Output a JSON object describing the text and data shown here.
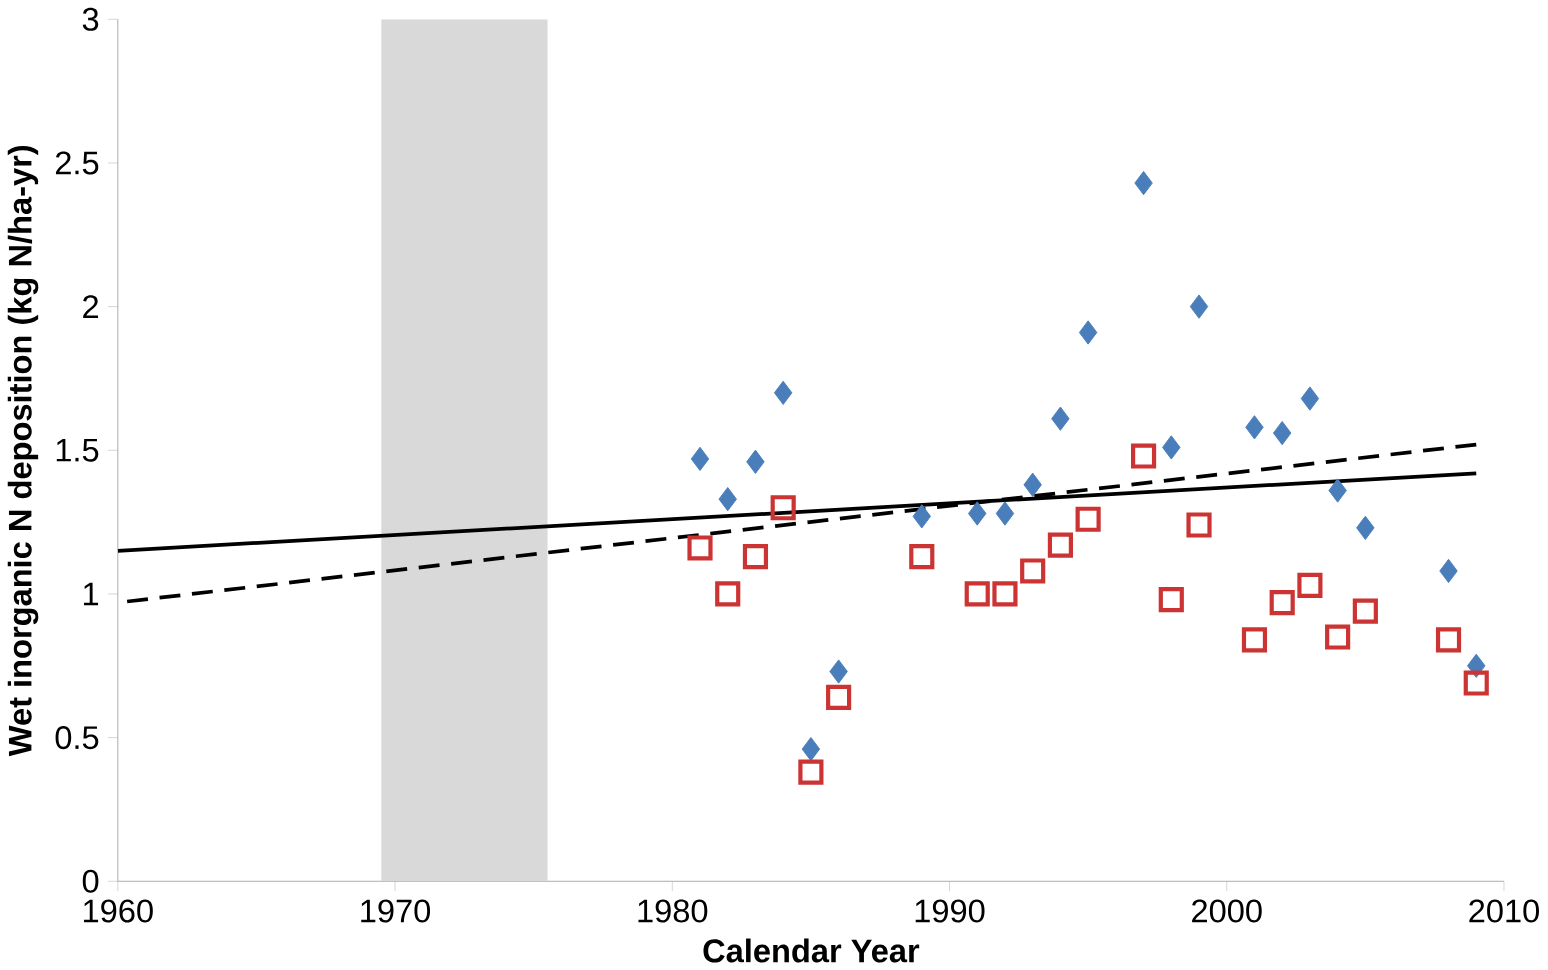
{
  "chart_data": {
    "type": "scatter",
    "xlabel": "Calendar Year",
    "ylabel": "Wet inorganic N deposition (kg N/ha-yr)",
    "xlim": [
      1960,
      2010
    ],
    "ylim": [
      0,
      3
    ],
    "xticks": [
      1960,
      1970,
      1980,
      1990,
      2000,
      2010
    ],
    "yticks": [
      0,
      0.5,
      1,
      1.5,
      2,
      2.5,
      3
    ],
    "grid": false,
    "bands": [
      {
        "axis": "x",
        "from": 1969.5,
        "to": 1975.5,
        "color": "#d9d9d9"
      }
    ],
    "series": [
      {
        "type": "scatter",
        "marker": "diamond",
        "color": "#4a7ebb",
        "x": [
          1981,
          1982,
          1983,
          1984,
          1985,
          1986,
          1989,
          1991,
          1992,
          1993,
          1994,
          1995,
          1997,
          1998,
          1999,
          2001,
          2002,
          2003,
          2004,
          2005,
          2008,
          2009
        ],
        "values": [
          1.47,
          1.33,
          1.46,
          1.7,
          0.46,
          0.73,
          1.27,
          1.28,
          1.28,
          1.38,
          1.61,
          1.91,
          2.43,
          1.51,
          2.0,
          1.58,
          1.56,
          1.68,
          1.36,
          1.23,
          1.08,
          0.75
        ]
      },
      {
        "type": "scatter",
        "marker": "square",
        "color": "#cc3333",
        "x": [
          1981,
          1982,
          1983,
          1984,
          1985,
          1986,
          1989,
          1991,
          1992,
          1993,
          1994,
          1995,
          1997,
          1998,
          1999,
          2001,
          2002,
          2003,
          2004,
          2005,
          2008,
          2009
        ],
        "values": [
          1.16,
          1.0,
          1.13,
          1.3,
          0.38,
          0.64,
          1.13,
          1.0,
          1.0,
          1.08,
          1.17,
          1.26,
          1.48,
          0.98,
          1.24,
          0.84,
          0.97,
          1.03,
          0.85,
          0.94,
          0.84,
          0.69
        ]
      },
      {
        "type": "line",
        "marker": "none",
        "line_style": "solid",
        "color": "#000000",
        "x": [
          1960,
          2009
        ],
        "values": [
          1.15,
          1.42
        ]
      },
      {
        "type": "line",
        "marker": "none",
        "line_style": "dashed",
        "color": "#000000",
        "x": [
          1960,
          2009
        ],
        "values": [
          0.97,
          1.52
        ]
      }
    ]
  }
}
